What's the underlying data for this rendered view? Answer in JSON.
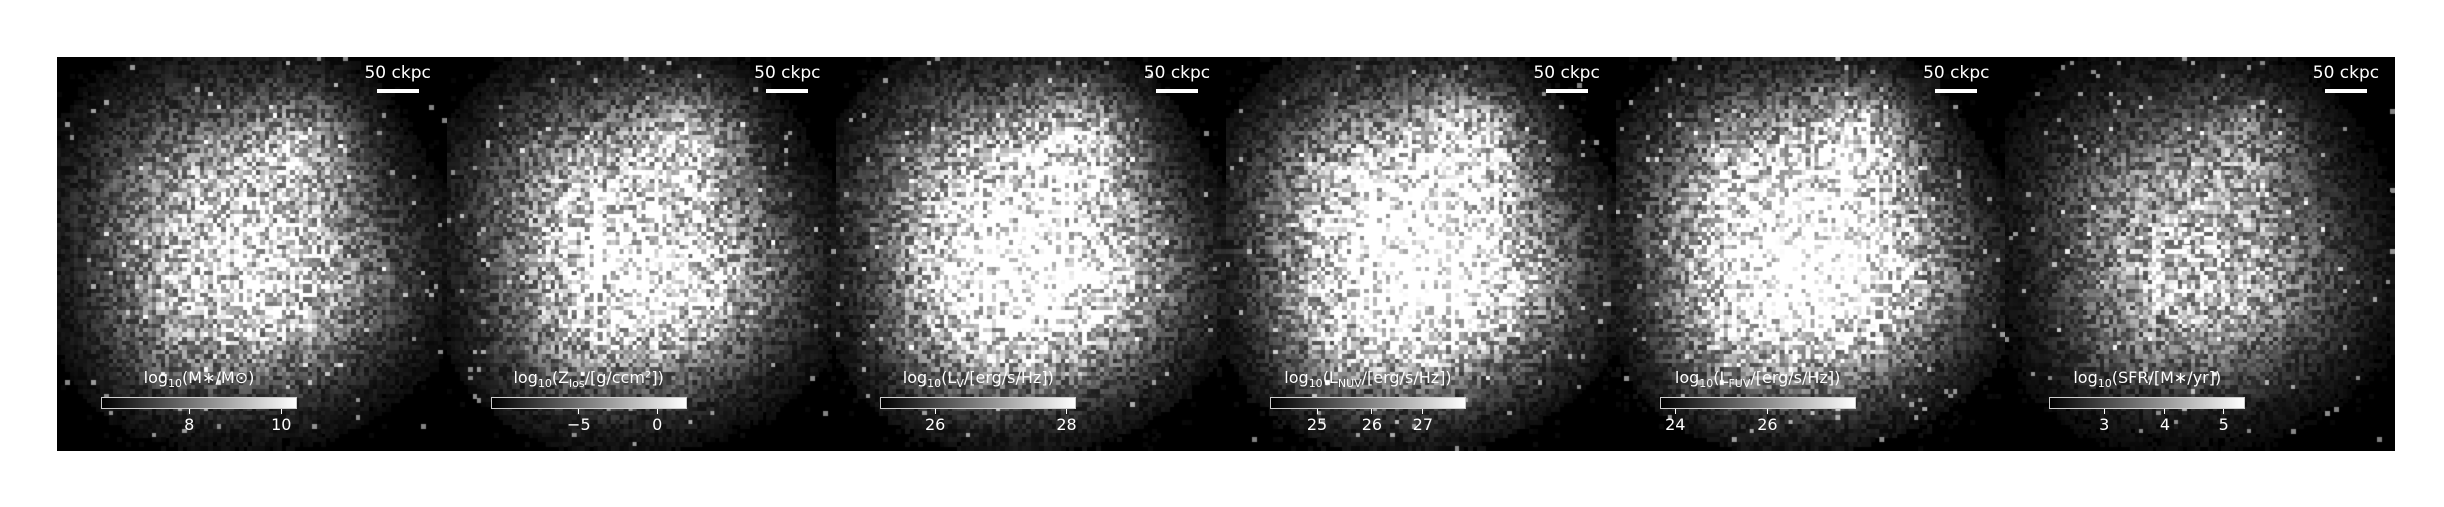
{
  "figure": {
    "panels": [
      {
        "scale_label": "50 ckpc",
        "colorbar_label": {
          "pre": "log",
          "sub": "10",
          "post": "(M∗/M⊙)"
        },
        "ticks": [
          {
            "label": "8",
            "frac": 0.45
          },
          {
            "label": "10",
            "frac": 0.92
          }
        ],
        "brightness": 0.7
      },
      {
        "scale_label": "50 ckpc",
        "colorbar_label": {
          "pre": "log",
          "sub": "10",
          "post": "(Z",
          "sub2": "los",
          "post2": "/[g/ccm²])"
        },
        "ticks": [
          {
            "label": "−5",
            "frac": 0.45
          },
          {
            "label": "0",
            "frac": 0.85
          }
        ],
        "brightness": 0.8
      },
      {
        "scale_label": "50 ckpc",
        "colorbar_label": {
          "pre": "log",
          "sub": "10",
          "post": "(L",
          "sub2": "V",
          "post2": "/[erg/s/Hz])"
        },
        "ticks": [
          {
            "label": "26",
            "frac": 0.28
          },
          {
            "label": "28",
            "frac": 0.95
          }
        ],
        "brightness": 0.95
      },
      {
        "scale_label": "50 ckpc",
        "colorbar_label": {
          "pre": "log",
          "sub": "10",
          "post": "(L",
          "sub2": "NUV",
          "post2": "/[erg/s/Hz])"
        },
        "ticks": [
          {
            "label": "25",
            "frac": 0.24
          },
          {
            "label": "26",
            "frac": 0.52
          },
          {
            "label": "27",
            "frac": 0.78
          }
        ],
        "brightness": 1.0
      },
      {
        "scale_label": "50 ckpc",
        "colorbar_label": {
          "pre": "log",
          "sub": "10",
          "post": "(L",
          "sub2": "FUV",
          "post2": "/[erg/s/Hz])"
        },
        "ticks": [
          {
            "label": "24",
            "frac": 0.08
          },
          {
            "label": "26",
            "frac": 0.55
          }
        ],
        "brightness": 1.0
      },
      {
        "scale_label": "50 ckpc",
        "colorbar_label": {
          "pre": "log",
          "sub": "10",
          "post": "(SFR/[M∗/yr])"
        },
        "ticks": [
          {
            "label": "3",
            "frac": 0.28
          },
          {
            "label": "4",
            "frac": 0.59
          },
          {
            "label": "5",
            "frac": 0.89
          }
        ],
        "brightness": 0.55
      }
    ]
  }
}
